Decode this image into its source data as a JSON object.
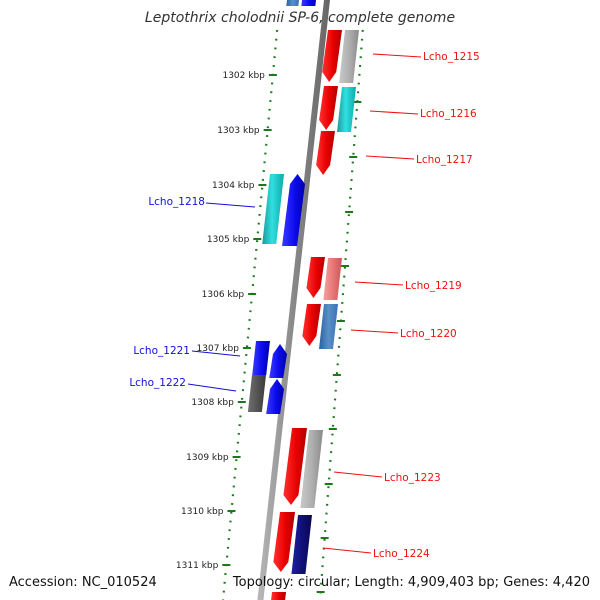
{
  "title": "Leptothrix cholodnii SP-6, complete genome",
  "footer": {
    "accession": "Accession: NC_010524",
    "topology": "Topology: circular;",
    "length": "Length: 4,909,403 bp;",
    "genes": "Genes: 4,420"
  },
  "diagram": {
    "tick_labels": [
      "1302 kbp",
      "1303 kbp",
      "1304 kbp",
      "1305 kbp",
      "1306 kbp",
      "1307 kbp",
      "1308 kbp",
      "1309 kbp",
      "1310 kbp",
      "1311 kbp"
    ],
    "genes_forward": [
      {
        "label": "Lcho_1218",
        "color": "#1010e0"
      },
      {
        "label": "Lcho_1221",
        "color": "#1010e0"
      },
      {
        "label": "Lcho_1222",
        "color": "#1010e0"
      }
    ],
    "genes_reverse": [
      {
        "label": "Lcho_1215",
        "color": "#ee1111"
      },
      {
        "label": "Lcho_1216",
        "color": "#ee1111"
      },
      {
        "label": "Lcho_1217",
        "color": "#ee1111"
      },
      {
        "label": "Lcho_1219",
        "color": "#ee1111"
      },
      {
        "label": "Lcho_1220",
        "color": "#ee1111"
      },
      {
        "label": "Lcho_1223",
        "color": "#ee1111"
      },
      {
        "label": "Lcho_1224",
        "color": "#ee1111"
      }
    ],
    "colors": {
      "backbone": "#888888",
      "tick": "#1a7a1a",
      "cds_forward": "#1010e0",
      "cds_reverse": "#ee1111",
      "orf_cyan": "#10c8c8",
      "orf_gray": "#aaaaaa",
      "orf_steelblue": "#4a80b8",
      "orf_pink": "#f08080",
      "orf_darkgray": "#555555",
      "orf_navy": "#10107a"
    }
  }
}
